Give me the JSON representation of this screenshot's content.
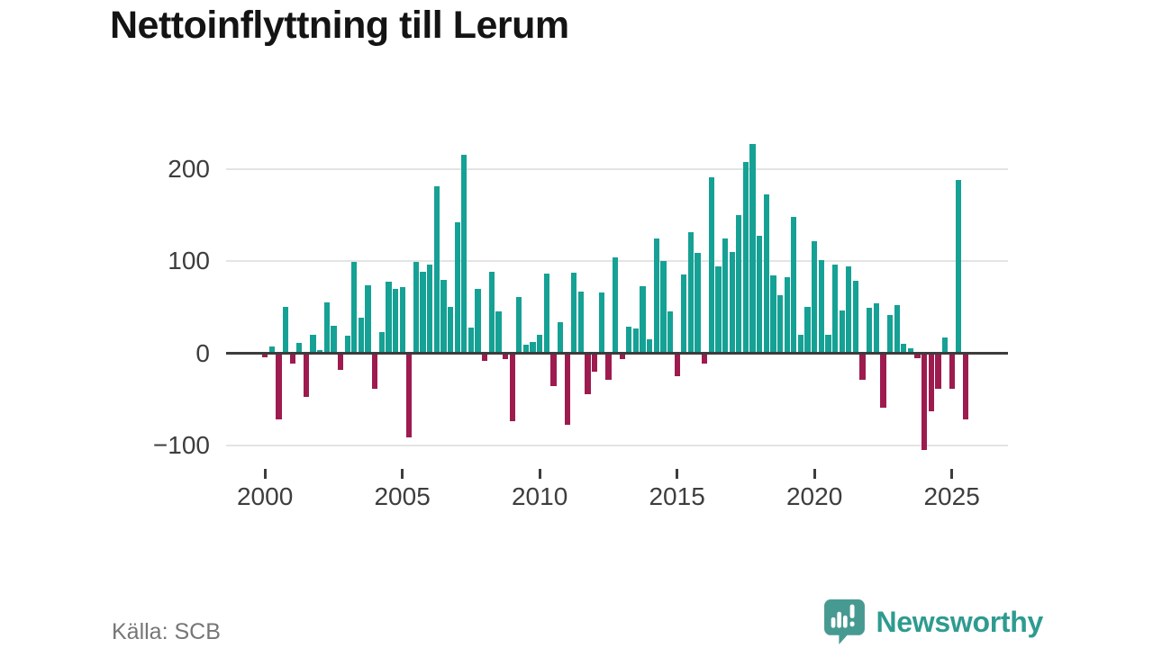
{
  "chart_data": {
    "type": "bar",
    "title": "Nettoinflyttning till Lerum",
    "source": "Källa: SCB",
    "frequency": "quarterly",
    "start_period": "2000 Q1",
    "end_period": "2025 Q3",
    "grid": "horizontal",
    "legend": "none",
    "ylim": [
      -130,
      240
    ],
    "colors": {
      "positive": "#16a195",
      "negative": "#9e1b4f"
    },
    "y_ticks": [
      {
        "value": 200,
        "label": "200"
      },
      {
        "value": 100,
        "label": "100"
      },
      {
        "value": 0,
        "label": "0"
      },
      {
        "value": -100,
        "label": "−100"
      }
    ],
    "x_ticks": [
      {
        "index": 0,
        "label": "2000"
      },
      {
        "index": 20,
        "label": "2005"
      },
      {
        "index": 40,
        "label": "2010"
      },
      {
        "index": 60,
        "label": "2015"
      },
      {
        "index": 80,
        "label": "2020"
      },
      {
        "index": 100,
        "label": "2025"
      }
    ],
    "series": [
      {
        "name": "Nettoinflyttning",
        "values": [
          -4,
          7,
          -72,
          50,
          -11,
          11,
          -47,
          20,
          3,
          55,
          30,
          -18,
          19,
          99,
          39,
          74,
          -39,
          23,
          78,
          70,
          72,
          -91,
          99,
          88,
          96,
          181,
          80,
          50,
          142,
          215,
          28,
          70,
          -8,
          88,
          45,
          -6,
          -74,
          61,
          9,
          12,
          20,
          86,
          -36,
          34,
          -78,
          87,
          67,
          -44,
          -20,
          66,
          -29,
          104,
          -6,
          29,
          27,
          73,
          15,
          124,
          100,
          45,
          -25,
          85,
          131,
          109,
          -11,
          191,
          94,
          124,
          110,
          150,
          207,
          227,
          127,
          172,
          84,
          63,
          82,
          148,
          20,
          50,
          121,
          101,
          20,
          96,
          46,
          94,
          79,
          -29,
          49,
          54,
          -59,
          41,
          52,
          10,
          5,
          -5,
          -105,
          -63,
          -39,
          17,
          -39,
          188,
          -72
        ]
      }
    ]
  },
  "logo": {
    "text": "Newsworthy",
    "icon": "newsworthy-speech-bubble-chart-icon"
  }
}
